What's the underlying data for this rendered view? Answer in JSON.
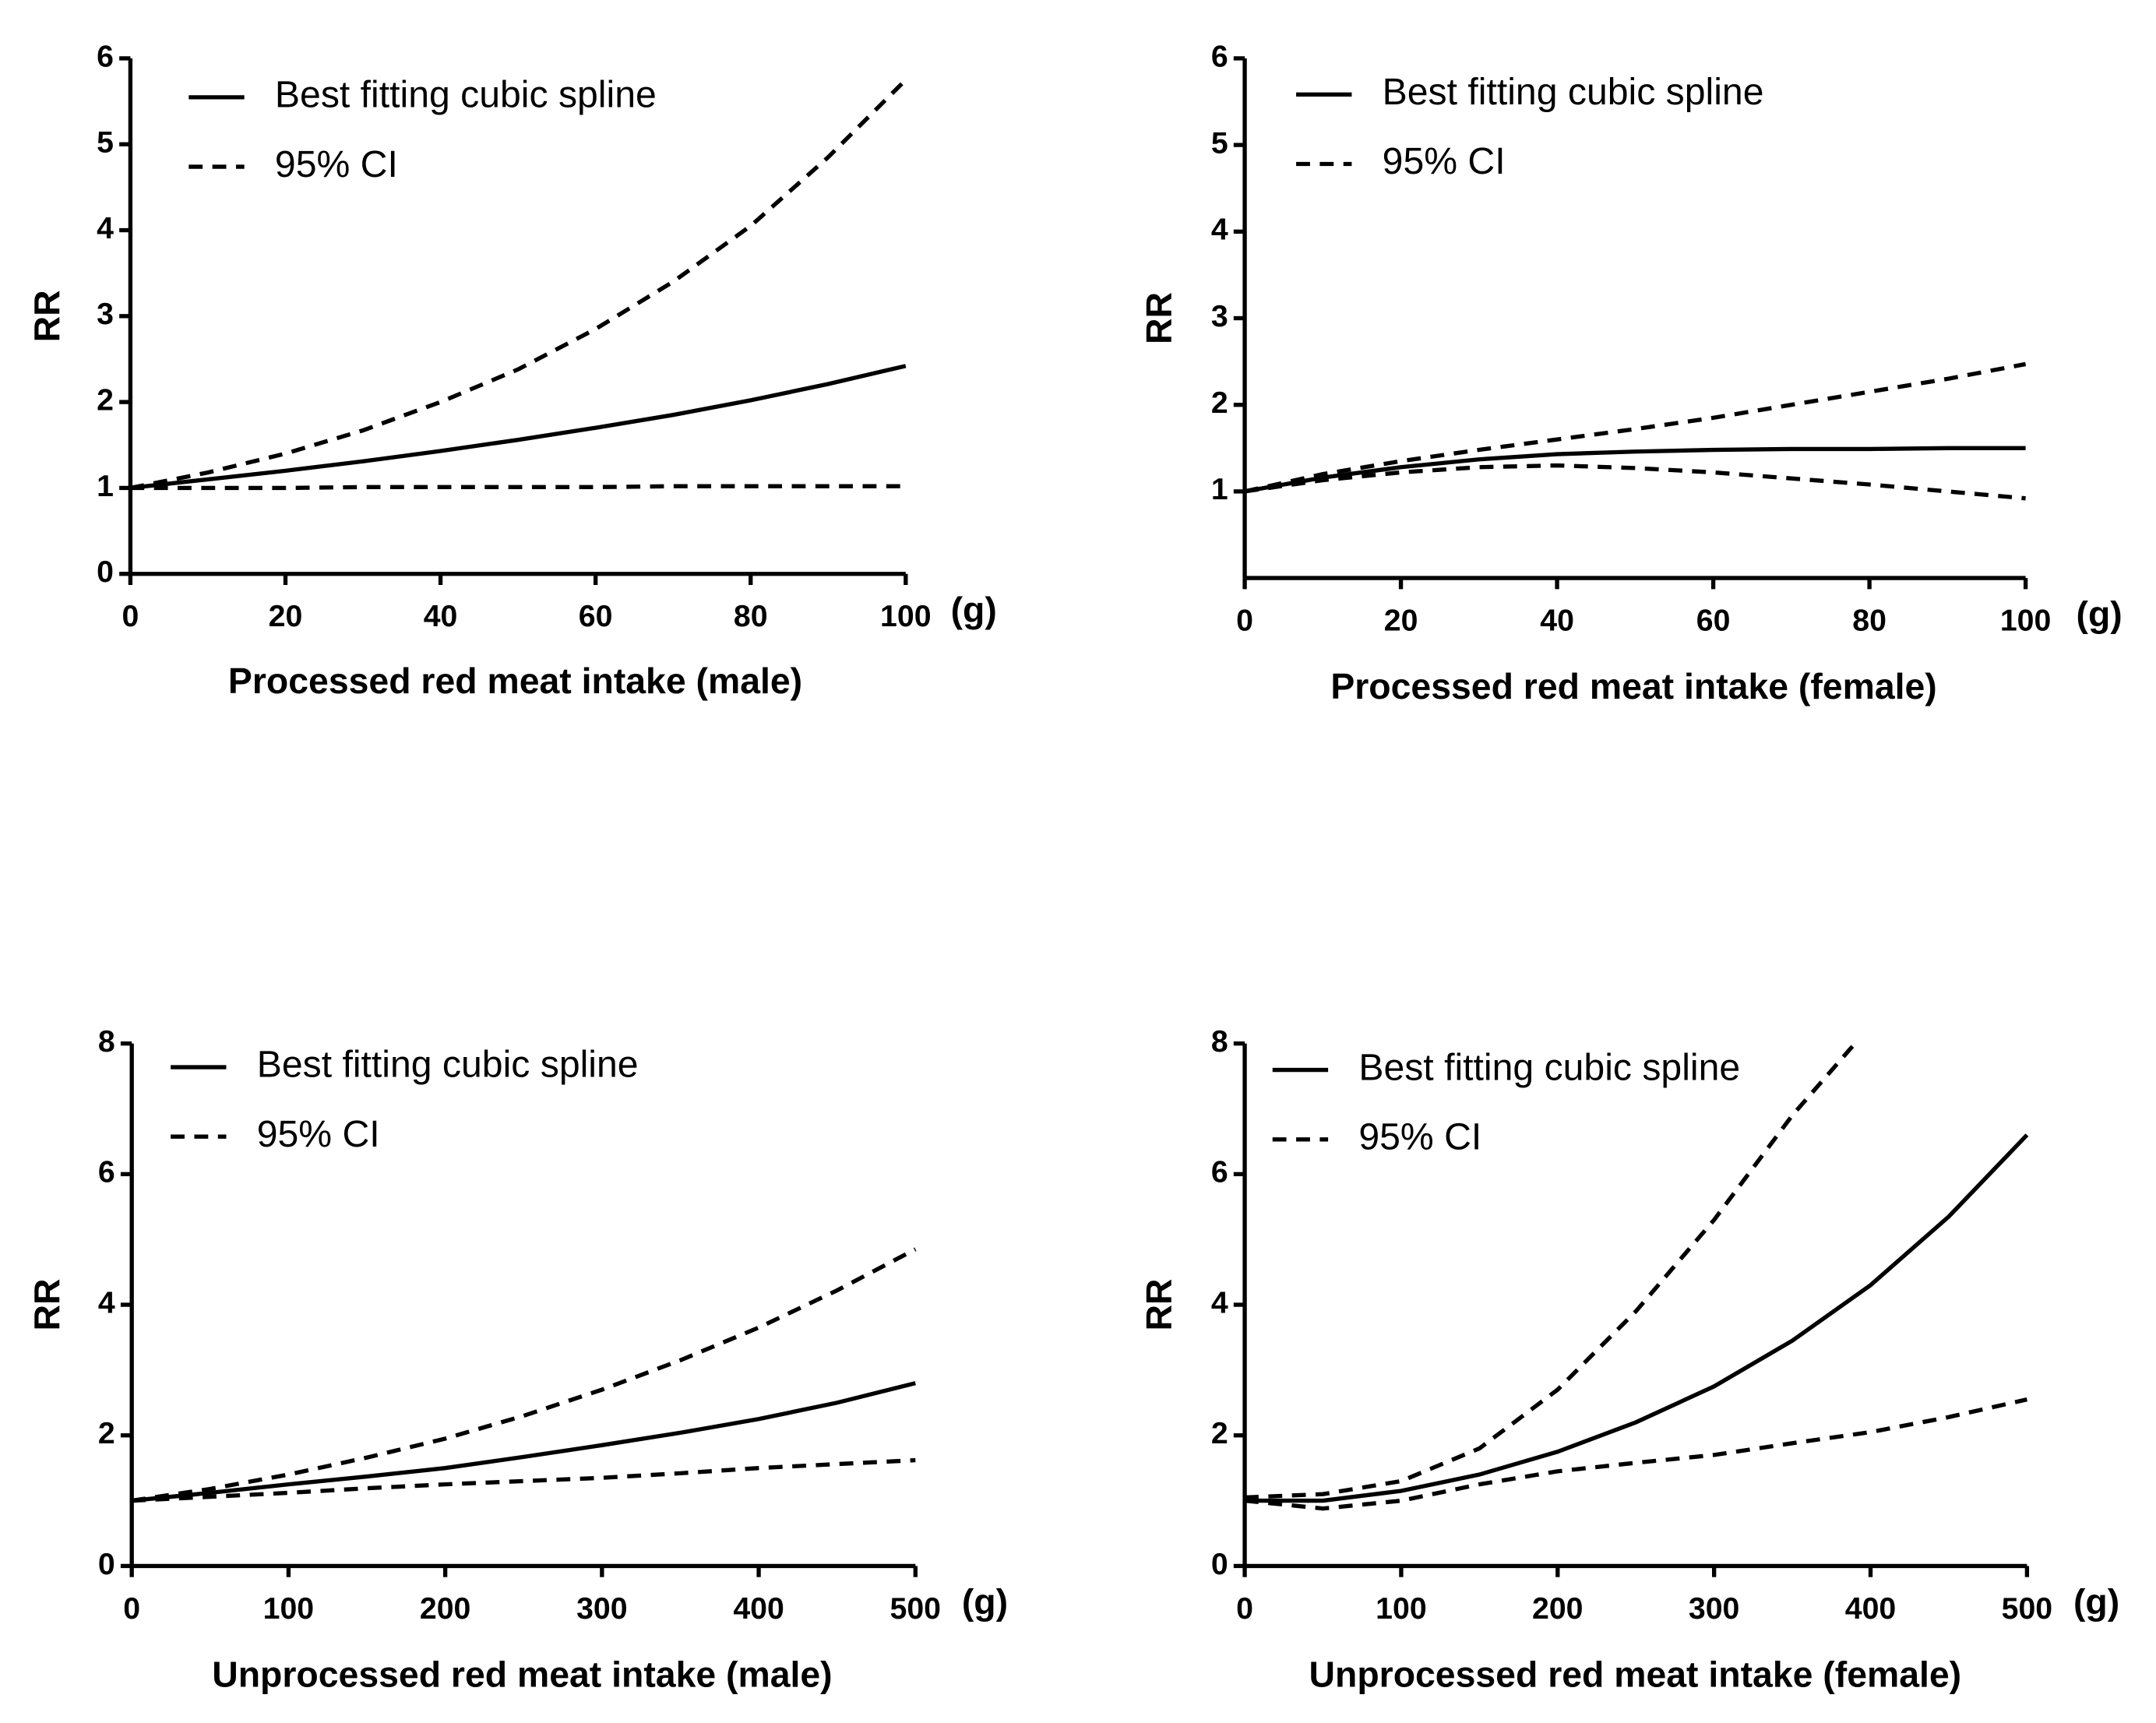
{
  "chart_data": [
    {
      "type": "line",
      "xlabel": "Processed red meat intake (male)",
      "ylabel": "RR",
      "annotation": "(g)",
      "x": [
        0,
        10,
        20,
        30,
        40,
        50,
        60,
        70,
        80,
        90,
        100
      ],
      "xlim": [
        0,
        100
      ],
      "xticks": [
        0,
        20,
        40,
        60,
        80,
        100
      ],
      "ylim": [
        0,
        6
      ],
      "yticks": [
        0,
        1,
        2,
        3,
        4,
        5,
        6
      ],
      "series": [
        {
          "name": "Best fitting cubic spline",
          "color": "#000000",
          "dash": false,
          "values": [
            1,
            1.1,
            1.2,
            1.31,
            1.43,
            1.56,
            1.7,
            1.85,
            2.02,
            2.21,
            2.42
          ]
        },
        {
          "name": "95% CI",
          "color": "#000000",
          "dash": true,
          "values": [
            1,
            1.18,
            1.4,
            1.67,
            2.0,
            2.38,
            2.85,
            3.4,
            4.05,
            4.85,
            5.75
          ]
        },
        {
          "name": "95% CI",
          "color": "#000000",
          "dash": true,
          "values": [
            1,
            1.0,
            1.0,
            1.01,
            1.01,
            1.01,
            1.01,
            1.02,
            1.02,
            1.02,
            1.02
          ]
        }
      ]
    },
    {
      "type": "line",
      "xlabel": "Processed red meat intake (female)",
      "ylabel": "RR",
      "annotation": "(g)",
      "x": [
        0,
        10,
        20,
        30,
        40,
        50,
        60,
        70,
        80,
        90,
        100
      ],
      "xlim": [
        0,
        100
      ],
      "xticks": [
        0,
        20,
        40,
        60,
        80,
        100
      ],
      "ylim": [
        0,
        6
      ],
      "yticks": [
        1,
        2,
        3,
        4,
        5,
        6
      ],
      "series": [
        {
          "name": "Best fitting cubic spline",
          "color": "#000000",
          "dash": false,
          "values": [
            1,
            1.16,
            1.28,
            1.37,
            1.43,
            1.46,
            1.48,
            1.49,
            1.49,
            1.5,
            1.5
          ]
        },
        {
          "name": "95% CI",
          "color": "#000000",
          "dash": true,
          "values": [
            1,
            1.2,
            1.35,
            1.48,
            1.6,
            1.72,
            1.85,
            2.0,
            2.15,
            2.3,
            2.47
          ]
        },
        {
          "name": "95% CI",
          "color": "#000000",
          "dash": true,
          "values": [
            1,
            1.13,
            1.22,
            1.28,
            1.3,
            1.27,
            1.22,
            1.15,
            1.08,
            1.0,
            0.92
          ]
        }
      ]
    },
    {
      "type": "line",
      "xlabel": "Unprocessed red meat intake (male)",
      "ylabel": "RR",
      "annotation": "(g)",
      "x": [
        0,
        50,
        100,
        150,
        200,
        250,
        300,
        350,
        400,
        450,
        500
      ],
      "xlim": [
        0,
        500
      ],
      "xticks": [
        0,
        100,
        200,
        300,
        400,
        500
      ],
      "ylim": [
        0,
        8
      ],
      "yticks": [
        0,
        2,
        4,
        6,
        8
      ],
      "series": [
        {
          "name": "Best fitting cubic spline",
          "color": "#000000",
          "dash": false,
          "values": [
            1,
            1.12,
            1.25,
            1.37,
            1.5,
            1.67,
            1.85,
            2.04,
            2.25,
            2.5,
            2.8
          ]
        },
        {
          "name": "95% CI",
          "color": "#000000",
          "dash": true,
          "values": [
            1,
            1.18,
            1.4,
            1.66,
            1.95,
            2.3,
            2.7,
            3.15,
            3.65,
            4.22,
            4.85
          ]
        },
        {
          "name": "95% CI",
          "color": "#000000",
          "dash": true,
          "values": [
            1,
            1.06,
            1.12,
            1.19,
            1.25,
            1.3,
            1.35,
            1.42,
            1.5,
            1.56,
            1.62
          ]
        }
      ]
    },
    {
      "type": "line",
      "xlabel": "Unprocessed red meat intake (female)",
      "ylabel": "RR",
      "annotation": "(g)",
      "x": [
        0,
        50,
        100,
        150,
        200,
        250,
        300,
        350,
        400,
        450,
        500
      ],
      "xlim": [
        0,
        500
      ],
      "xticks": [
        0,
        100,
        200,
        300,
        400,
        500
      ],
      "ylim": [
        0,
        8
      ],
      "yticks": [
        0,
        2,
        4,
        6,
        8
      ],
      "series": [
        {
          "name": "Best fitting cubic spline",
          "color": "#000000",
          "dash": false,
          "values": [
            1,
            1.0,
            1.15,
            1.4,
            1.75,
            2.2,
            2.75,
            3.45,
            4.3,
            5.35,
            6.6
          ]
        },
        {
          "name": "95% CI",
          "color": "#000000",
          "dash": true,
          "x": [
            0,
            50,
            100,
            150,
            200,
            250,
            300,
            350,
            390
          ],
          "values": [
            1.05,
            1.1,
            1.3,
            1.8,
            2.7,
            3.9,
            5.3,
            6.9,
            8
          ]
        },
        {
          "name": "95% CI",
          "color": "#000000",
          "dash": true,
          "values": [
            1,
            0.88,
            1.0,
            1.25,
            1.45,
            1.58,
            1.7,
            1.88,
            2.05,
            2.28,
            2.55
          ]
        }
      ]
    }
  ]
}
